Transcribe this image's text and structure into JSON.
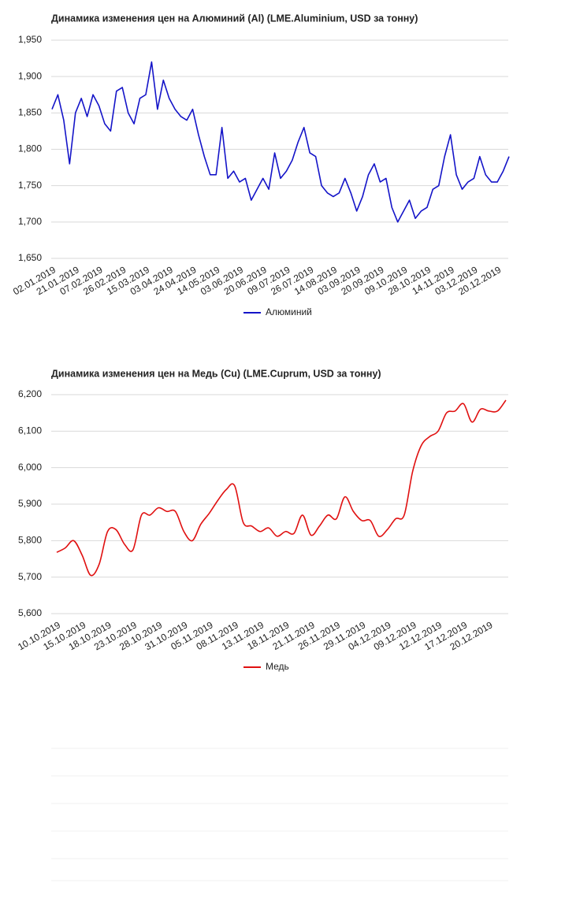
{
  "chart_data": [
    {
      "type": "line",
      "title": "Динамика изменения цен на Алюминий (Al) (LME.Aluminium, USD за тонну)",
      "categories": [
        "02.01.2019",
        null,
        null,
        null,
        "21.01.2019",
        null,
        null,
        null,
        "07.02.2019",
        null,
        null,
        null,
        "26.02.2019",
        null,
        null,
        null,
        "15.03.2019",
        null,
        null,
        null,
        "03.04.2019",
        null,
        null,
        null,
        "24.04.2019",
        null,
        null,
        null,
        "14.05.2019",
        null,
        null,
        null,
        "03.06.2019",
        null,
        null,
        null,
        "20.06.2019",
        null,
        null,
        null,
        "09.07.2019",
        null,
        null,
        null,
        "26.07.2019",
        null,
        null,
        null,
        "14.08.2019",
        null,
        null,
        null,
        "03.09.2019",
        null,
        null,
        null,
        "20.09.2019",
        null,
        null,
        null,
        "09.10.2019",
        null,
        null,
        null,
        "28.10.2019",
        null,
        null,
        null,
        "14.11.2019",
        null,
        null,
        null,
        "03.12.2019",
        null,
        null,
        null,
        "20.12.2019",
        null,
        null
      ],
      "series": [
        {
          "name": "Алюминий",
          "color": "#1414c8",
          "values": [
            1855,
            1875,
            1840,
            1780,
            1850,
            1870,
            1845,
            1875,
            1860,
            1835,
            1825,
            1880,
            1885,
            1850,
            1835,
            1870,
            1875,
            1920,
            1855,
            1895,
            1870,
            1855,
            1845,
            1840,
            1855,
            1820,
            1790,
            1765,
            1765,
            1830,
            1760,
            1770,
            1755,
            1760,
            1730,
            1745,
            1760,
            1745,
            1795,
            1760,
            1770,
            1785,
            1810,
            1830,
            1795,
            1790,
            1750,
            1740,
            1735,
            1740,
            1760,
            1740,
            1715,
            1735,
            1765,
            1780,
            1755,
            1760,
            1720,
            1700,
            1715,
            1730,
            1705,
            1715,
            1720,
            1745,
            1750,
            1790,
            1820,
            1765,
            1745,
            1755,
            1760,
            1790,
            1765,
            1755,
            1755,
            1770,
            1790
          ]
        }
      ],
      "ylim": [
        1650,
        1950
      ],
      "yticks": [
        {
          "value": 1650,
          "label": "1,650"
        },
        {
          "value": 1700,
          "label": "1,700"
        },
        {
          "value": 1750,
          "label": "1,750"
        },
        {
          "value": 1800,
          "label": "1,800"
        },
        {
          "value": 1850,
          "label": "1,850"
        },
        {
          "value": 1900,
          "label": "1,900"
        },
        {
          "value": 1950,
          "label": "1,950"
        }
      ],
      "grid": true,
      "legend": "bottom"
    },
    {
      "type": "line",
      "title": "Динамика изменения цен на Медь (Cu) (LME.Cuprum, USD за тонну)",
      "categories": [
        "10.10.2019",
        null,
        null,
        "15.10.2019",
        null,
        null,
        "18.10.2019",
        null,
        null,
        "23.10.2019",
        null,
        null,
        "28.10.2019",
        null,
        null,
        "31.10.2019",
        null,
        null,
        "05.11.2019",
        null,
        null,
        "08.11.2019",
        null,
        null,
        "13.11.2019",
        null,
        null,
        "18.11.2019",
        null,
        null,
        "21.11.2019",
        null,
        null,
        "26.11.2019",
        null,
        null,
        "29.11.2019",
        null,
        null,
        "04.12.2019",
        null,
        null,
        "09.12.2019",
        null,
        null,
        "12.12.2019",
        null,
        null,
        "17.12.2019",
        null,
        null,
        "20.12.2019",
        null,
        null
      ],
      "series": [
        {
          "name": "Медь",
          "color": "#e01010",
          "values": [
            5768,
            5780,
            5800,
            5760,
            5705,
            5735,
            5825,
            5830,
            5790,
            5775,
            5870,
            5870,
            5890,
            5880,
            5880,
            5825,
            5800,
            5845,
            5875,
            5910,
            5940,
            5950,
            5850,
            5840,
            5825,
            5835,
            5812,
            5825,
            5820,
            5870,
            5815,
            5840,
            5870,
            5860,
            5920,
            5880,
            5855,
            5855,
            5812,
            5830,
            5860,
            5870,
            5990,
            6060,
            6085,
            6100,
            6150,
            6155,
            6175,
            6125,
            6160,
            6155,
            6155,
            6185
          ]
        }
      ],
      "ylim": [
        5600,
        6200
      ],
      "yticks": [
        {
          "value": 5600,
          "label": "5,600"
        },
        {
          "value": 5700,
          "label": "5,700"
        },
        {
          "value": 5800,
          "label": "5,800"
        },
        {
          "value": 5900,
          "label": "5,900"
        },
        {
          "value": 6000,
          "label": "6,000"
        },
        {
          "value": 6100,
          "label": "6,100"
        },
        {
          "value": 6200,
          "label": "6,200"
        }
      ],
      "grid": true,
      "legend": "bottom",
      "smooth": true
    }
  ]
}
